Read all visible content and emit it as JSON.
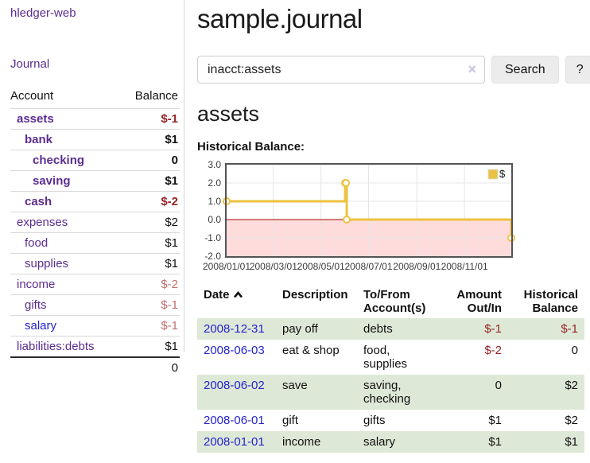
{
  "sidebar": {
    "brand": "hledger-web",
    "journal_link": "Journal",
    "accounts_table": {
      "headers": {
        "account": "Account",
        "balance": "Balance"
      },
      "rows": [
        {
          "name": "assets",
          "balance": "$-1"
        },
        {
          "name": "bank",
          "balance": "$1"
        },
        {
          "name": "checking",
          "balance": "0"
        },
        {
          "name": "saving",
          "balance": "$1"
        },
        {
          "name": "cash",
          "balance": "$-2"
        },
        {
          "name": "expenses",
          "balance": "$2"
        },
        {
          "name": "food",
          "balance": "$1"
        },
        {
          "name": "supplies",
          "balance": "$1"
        },
        {
          "name": "income",
          "balance": "$-2"
        },
        {
          "name": "gifts",
          "balance": "$-1"
        },
        {
          "name": "salary",
          "balance": "$-1"
        },
        {
          "name": "liabilities:debts",
          "balance": "$1"
        }
      ],
      "total": "0"
    }
  },
  "header": {
    "title": "sample.journal"
  },
  "search": {
    "query": "inacct:assets",
    "clear_icon": "×",
    "button_label": "Search",
    "help_label": "?"
  },
  "account_page": {
    "title": "assets",
    "chart_label": "Historical Balance:"
  },
  "chart_data": {
    "type": "line",
    "step": true,
    "title": "Historical Balance",
    "series": [
      {
        "name": "$",
        "points": [
          [
            "2008-01-01",
            1
          ],
          [
            "2008-06-01",
            2
          ],
          [
            "2008-06-02",
            2
          ],
          [
            "2008-06-03",
            0
          ],
          [
            "2008-12-31",
            -1
          ]
        ]
      }
    ],
    "xlim": [
      "2008-01-01",
      "2008-12-31"
    ],
    "ylim": [
      -2,
      3
    ],
    "yticks": [
      {
        "v": 3,
        "label": "3.0"
      },
      {
        "v": 2,
        "label": "2.0"
      },
      {
        "v": 1,
        "label": "1.0"
      },
      {
        "v": 0,
        "label": "0.0"
      },
      {
        "v": -1,
        "label": "-1.0"
      },
      {
        "v": -2,
        "label": "-2.0"
      }
    ],
    "xticks": [
      {
        "v": "2008-01-01",
        "label": "2008/01/01"
      },
      {
        "v": "2008-03-01",
        "label": "2008/03/01"
      },
      {
        "v": "2008-05-01",
        "label": "2008/05/01"
      },
      {
        "v": "2008-07-01",
        "label": "2008/07/01"
      },
      {
        "v": "2008-09-01",
        "label": "2008/09/01"
      },
      {
        "v": "2008-11-01",
        "label": "2008/11/01"
      }
    ],
    "legend": {
      "label": "$",
      "position": "top-right"
    },
    "grid": true,
    "colors": {
      "series": "#EDC240",
      "marker_fill": "#ffffff",
      "grid": "#e5e5e5",
      "border": "#545454",
      "zero_line": "#a40000",
      "negative_region": "#ffdcdc"
    }
  },
  "register": {
    "headers": {
      "date": "Date",
      "sort_icon": "chevron-up",
      "description": "Description",
      "tofrom_line1": "To/From",
      "tofrom_line2": "Account(s)",
      "amount_line1": "Amount",
      "amount_line2": "Out/In",
      "balance_line1": "Historical",
      "balance_line2": "Balance"
    },
    "rows": [
      {
        "date": "2008-12-31",
        "description": "pay off",
        "accounts": "debts",
        "amount": "$-1",
        "balance": "$-1"
      },
      {
        "date": "2008-06-03",
        "description": "eat & shop",
        "accounts": "food, supplies",
        "amount": "$-2",
        "balance": "0"
      },
      {
        "date": "2008-06-02",
        "description": "save",
        "accounts": "saving, checking",
        "amount": "0",
        "balance": "$2"
      },
      {
        "date": "2008-06-01",
        "description": "gift",
        "accounts": "gifts",
        "amount": "$1",
        "balance": "$2"
      },
      {
        "date": "2008-01-01",
        "description": "income",
        "accounts": "salary",
        "amount": "$1",
        "balance": "$1"
      }
    ]
  }
}
